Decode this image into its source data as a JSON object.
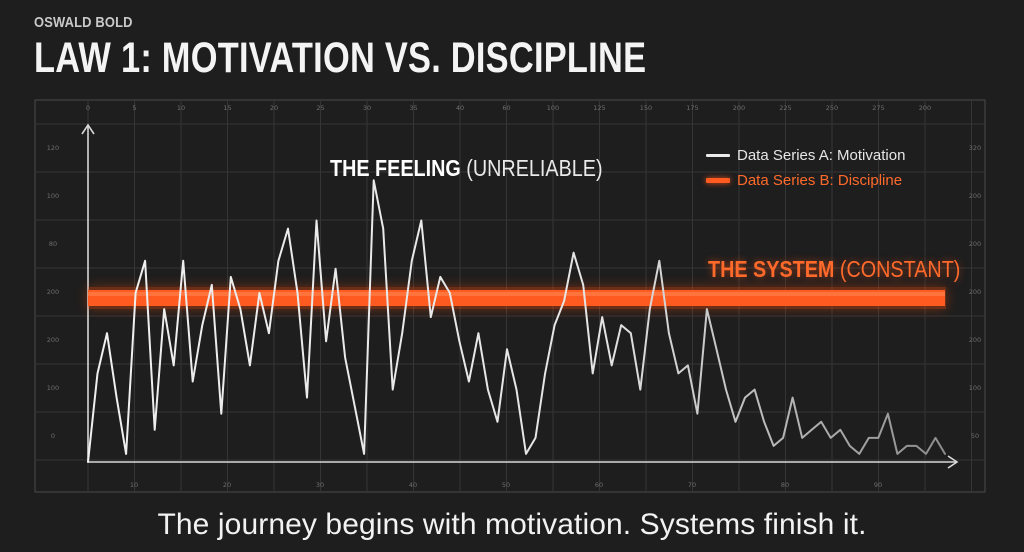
{
  "header": {
    "kicker": "OSWALD BOLD",
    "title": "LAW 1: MOTIVATION VS. DISCIPLINE"
  },
  "annotations": {
    "feeling_bold": "THE FEELING",
    "feeling_light": "(UNRELIABLE)",
    "system_bold": "THE SYSTEM",
    "system_light": "(CONSTANT)"
  },
  "legend": {
    "series_a": "Data Series A: Motivation",
    "series_b": "Data Series B: Discipline"
  },
  "caption": "The journey begins with motivation. Systems finish it.",
  "colors": {
    "background": "#1e1e1e",
    "motivation_line": "#eaeaea",
    "discipline_bar": "#ff5a1f",
    "grid": "#3a3a3a",
    "frame": "#4a4a4a"
  },
  "axes": {
    "top_ticks": [
      "0",
      "5",
      "10",
      "15",
      "20",
      "25",
      "30",
      "35",
      "40",
      "60",
      "100",
      "125",
      "150",
      "175",
      "200",
      "225",
      "250",
      "275",
      "200"
    ],
    "bottom_ticks": [
      "10",
      "20",
      "30",
      "40",
      "50",
      "60",
      "70",
      "80",
      "90"
    ],
    "left_ticks": [
      "120",
      "100",
      "80",
      "200",
      "200",
      "100",
      "0"
    ],
    "right_ticks": [
      "320",
      "200",
      "200",
      "200",
      "200",
      "100",
      "50"
    ]
  },
  "chart_data": {
    "type": "line",
    "title": "LAW 1: MOTIVATION VS. DISCIPLINE",
    "xlabel": "",
    "ylabel": "",
    "grid": true,
    "legend_position": "top-right",
    "series": [
      {
        "name": "Data Series A: Motivation",
        "style": "volatile line, high amplitude early, decaying to low values",
        "x": [
          0,
          1,
          2,
          3,
          4,
          5,
          6,
          7,
          8,
          9,
          10,
          11,
          12,
          13,
          14,
          15,
          16,
          17,
          18,
          19,
          20,
          21,
          22,
          23,
          24,
          25,
          26,
          27,
          28,
          29,
          30,
          31,
          32,
          33,
          34,
          35,
          36,
          37,
          38,
          39,
          40,
          41,
          42,
          43,
          44,
          45,
          46,
          47,
          48,
          49,
          50,
          51,
          52,
          53,
          54,
          55,
          56,
          57,
          58,
          59,
          60,
          61,
          62,
          63,
          64,
          65,
          66,
          67,
          68,
          69,
          70,
          71,
          72,
          73,
          74,
          75,
          76,
          77,
          78,
          79,
          80,
          81,
          82,
          83,
          84,
          85,
          86,
          87,
          88,
          89,
          90
        ],
        "values": [
          0,
          55,
          80,
          40,
          5,
          105,
          125,
          20,
          95,
          60,
          125,
          50,
          85,
          110,
          30,
          115,
          95,
          60,
          105,
          80,
          125,
          145,
          105,
          40,
          150,
          75,
          120,
          65,
          35,
          5,
          175,
          145,
          45,
          80,
          125,
          150,
          90,
          115,
          105,
          75,
          50,
          80,
          45,
          25,
          70,
          45,
          5,
          15,
          55,
          85,
          100,
          130,
          110,
          55,
          90,
          60,
          85,
          80,
          45,
          95,
          125,
          80,
          55,
          60,
          30,
          95,
          70,
          45,
          25,
          40,
          45,
          25,
          10,
          15,
          40,
          15,
          20,
          25,
          15,
          20,
          10,
          5,
          15,
          15,
          30,
          5,
          10,
          10,
          5,
          15,
          5
        ]
      },
      {
        "name": "Data Series B: Discipline",
        "style": "thick constant horizontal bar",
        "x": [
          0,
          90
        ],
        "values": [
          200,
          200
        ]
      }
    ],
    "annotations": [
      "THE FEELING (UNRELIABLE)",
      "THE SYSTEM (CONSTANT)"
    ]
  }
}
